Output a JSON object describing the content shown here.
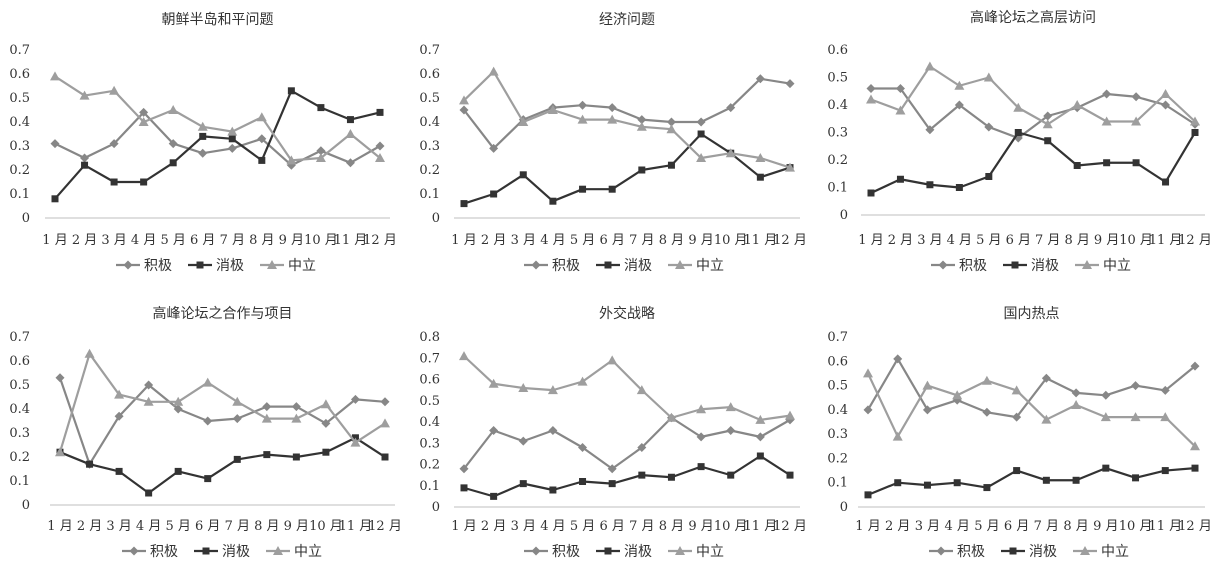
{
  "series_names": [
    "积极",
    "消极",
    "中立"
  ],
  "colors": {
    "pos": "#878787",
    "neg": "#333333",
    "neu": "#9e9e9e",
    "axis": "#bfbfbf"
  },
  "chart_data": [
    {
      "type": "line",
      "title": "朝鲜半岛和平问题",
      "x": [
        "1 月",
        "2 月",
        "3 月",
        "4 月",
        "5 月",
        "6 月",
        "7 月",
        "8 月",
        "9 月",
        "10 月",
        "11 月",
        "12 月"
      ],
      "ylim": [
        0,
        0.7
      ],
      "yticks": [
        "0",
        "0.1",
        "0.2",
        "0.3",
        "0.4",
        "0.5",
        "0.6",
        "0.7"
      ],
      "legend": "bottom",
      "series": [
        {
          "name": "积极",
          "marker": "diamond",
          "values": [
            0.31,
            0.25,
            0.31,
            0.44,
            0.31,
            0.27,
            0.29,
            0.33,
            0.22,
            0.28,
            0.23,
            0.3
          ]
        },
        {
          "name": "消极",
          "marker": "square",
          "values": [
            0.08,
            0.22,
            0.15,
            0.15,
            0.23,
            0.34,
            0.33,
            0.24,
            0.53,
            0.46,
            0.41,
            0.44
          ]
        },
        {
          "name": "中立",
          "marker": "triangle",
          "values": [
            0.59,
            0.51,
            0.53,
            0.4,
            0.45,
            0.38,
            0.36,
            0.42,
            0.24,
            0.25,
            0.35,
            0.25
          ]
        }
      ]
    },
    {
      "type": "line",
      "title": "经济问题",
      "x": [
        "1 月",
        "2 月",
        "3 月",
        "4 月",
        "5 月",
        "6 月",
        "7 月",
        "8 月",
        "9 月",
        "10 月",
        "11 月",
        "12 月"
      ],
      "ylim": [
        0,
        0.7
      ],
      "yticks": [
        "0",
        "0.1",
        "0.2",
        "0.3",
        "0.4",
        "0.5",
        "0.6",
        "0.7"
      ],
      "legend": "bottom",
      "series": [
        {
          "name": "积极",
          "marker": "diamond",
          "values": [
            0.45,
            0.29,
            0.41,
            0.46,
            0.47,
            0.46,
            0.41,
            0.4,
            0.4,
            0.46,
            0.58,
            0.56
          ]
        },
        {
          "name": "消极",
          "marker": "square",
          "values": [
            0.06,
            0.1,
            0.18,
            0.07,
            0.12,
            0.12,
            0.2,
            0.22,
            0.35,
            0.27,
            0.17,
            0.21
          ]
        },
        {
          "name": "中立",
          "marker": "triangle",
          "values": [
            0.49,
            0.61,
            0.4,
            0.45,
            0.41,
            0.41,
            0.38,
            0.37,
            0.25,
            0.27,
            0.25,
            0.21
          ]
        }
      ]
    },
    {
      "type": "line",
      "title": "高峰论坛之高层访问",
      "x": [
        "1 月",
        "2 月",
        "3 月",
        "4 月",
        "5 月",
        "6 月",
        "7 月",
        "8 月",
        "9 月",
        "10 月",
        "11 月",
        "12 月"
      ],
      "ylim": [
        0,
        0.6
      ],
      "yticks": [
        "0",
        "0.1",
        "0.2",
        "0.3",
        "0.4",
        "0.5",
        "0.6"
      ],
      "legend": "bottom",
      "series": [
        {
          "name": "积极",
          "marker": "diamond",
          "values": [
            0.46,
            0.46,
            0.31,
            0.4,
            0.32,
            0.28,
            0.36,
            0.39,
            0.44,
            0.43,
            0.4,
            0.33
          ]
        },
        {
          "name": "消极",
          "marker": "square",
          "values": [
            0.08,
            0.13,
            0.11,
            0.1,
            0.14,
            0.3,
            0.27,
            0.18,
            0.19,
            0.19,
            0.12,
            0.3
          ]
        },
        {
          "name": "中立",
          "marker": "triangle",
          "values": [
            0.42,
            0.38,
            0.54,
            0.47,
            0.5,
            0.39,
            0.33,
            0.4,
            0.34,
            0.34,
            0.44,
            0.34
          ]
        }
      ]
    },
    {
      "type": "line",
      "title": "高峰论坛之合作与项目",
      "x": [
        "1 月",
        "2 月",
        "3 月",
        "4 月",
        "5 月",
        "6 月",
        "7 月",
        "8 月",
        "9 月",
        "10 月",
        "11 月",
        "12 月"
      ],
      "ylim": [
        0,
        0.7
      ],
      "yticks": [
        "0",
        "0.1",
        "0.2",
        "0.3",
        "0.4",
        "0.5",
        "0.6",
        "0.7"
      ],
      "legend": "bottom",
      "series": [
        {
          "name": "积极",
          "marker": "diamond",
          "values": [
            0.53,
            0.17,
            0.37,
            0.5,
            0.4,
            0.35,
            0.36,
            0.41,
            0.41,
            0.34,
            0.44,
            0.43
          ]
        },
        {
          "name": "消极",
          "marker": "square",
          "values": [
            0.22,
            0.17,
            0.14,
            0.05,
            0.14,
            0.11,
            0.19,
            0.21,
            0.2,
            0.22,
            0.28,
            0.2
          ]
        },
        {
          "name": "中立",
          "marker": "triangle",
          "values": [
            0.22,
            0.63,
            0.46,
            0.43,
            0.43,
            0.51,
            0.43,
            0.36,
            0.36,
            0.42,
            0.26,
            0.34
          ]
        }
      ]
    },
    {
      "type": "line",
      "title": "外交战略",
      "x": [
        "1 月",
        "2 月",
        "3 月",
        "4 月",
        "5 月",
        "6 月",
        "7 月",
        "8 月",
        "9 月",
        "10 月",
        "11 月",
        "12 月"
      ],
      "ylim": [
        0,
        0.8
      ],
      "yticks": [
        "0",
        "0.1",
        "0.2",
        "0.3",
        "0.4",
        "0.5",
        "0.6",
        "0.7",
        "0.8"
      ],
      "legend": "bottom",
      "series": [
        {
          "name": "积极",
          "marker": "diamond",
          "values": [
            0.18,
            0.36,
            0.31,
            0.36,
            0.28,
            0.18,
            0.28,
            0.42,
            0.33,
            0.36,
            0.33,
            0.41
          ]
        },
        {
          "name": "消极",
          "marker": "square",
          "values": [
            0.09,
            0.05,
            0.11,
            0.08,
            0.12,
            0.11,
            0.15,
            0.14,
            0.19,
            0.15,
            0.24,
            0.15
          ]
        },
        {
          "name": "中立",
          "marker": "triangle",
          "values": [
            0.71,
            0.58,
            0.56,
            0.55,
            0.59,
            0.69,
            0.55,
            0.42,
            0.46,
            0.47,
            0.41,
            0.43
          ]
        }
      ]
    },
    {
      "type": "line",
      "title": "国内热点",
      "x": [
        "1 月",
        "2 月",
        "3 月",
        "4 月",
        "5 月",
        "6 月",
        "7 月",
        "8 月",
        "9 月",
        "10 月",
        "11 月",
        "12 月"
      ],
      "ylim": [
        0,
        0.7
      ],
      "yticks": [
        "0",
        "0.1",
        "0.2",
        "0.3",
        "0.4",
        "0.5",
        "0.6",
        "0.7"
      ],
      "legend": "bottom",
      "series": [
        {
          "name": "积极",
          "marker": "diamond",
          "values": [
            0.4,
            0.61,
            0.4,
            0.44,
            0.39,
            0.37,
            0.53,
            0.47,
            0.46,
            0.5,
            0.48,
            0.58
          ]
        },
        {
          "name": "消极",
          "marker": "square",
          "values": [
            0.05,
            0.1,
            0.09,
            0.1,
            0.08,
            0.15,
            0.11,
            0.11,
            0.16,
            0.12,
            0.15,
            0.16
          ]
        },
        {
          "name": "中立",
          "marker": "triangle",
          "values": [
            0.55,
            0.29,
            0.5,
            0.46,
            0.52,
            0.48,
            0.36,
            0.42,
            0.37,
            0.37,
            0.37,
            0.25
          ]
        }
      ]
    }
  ]
}
